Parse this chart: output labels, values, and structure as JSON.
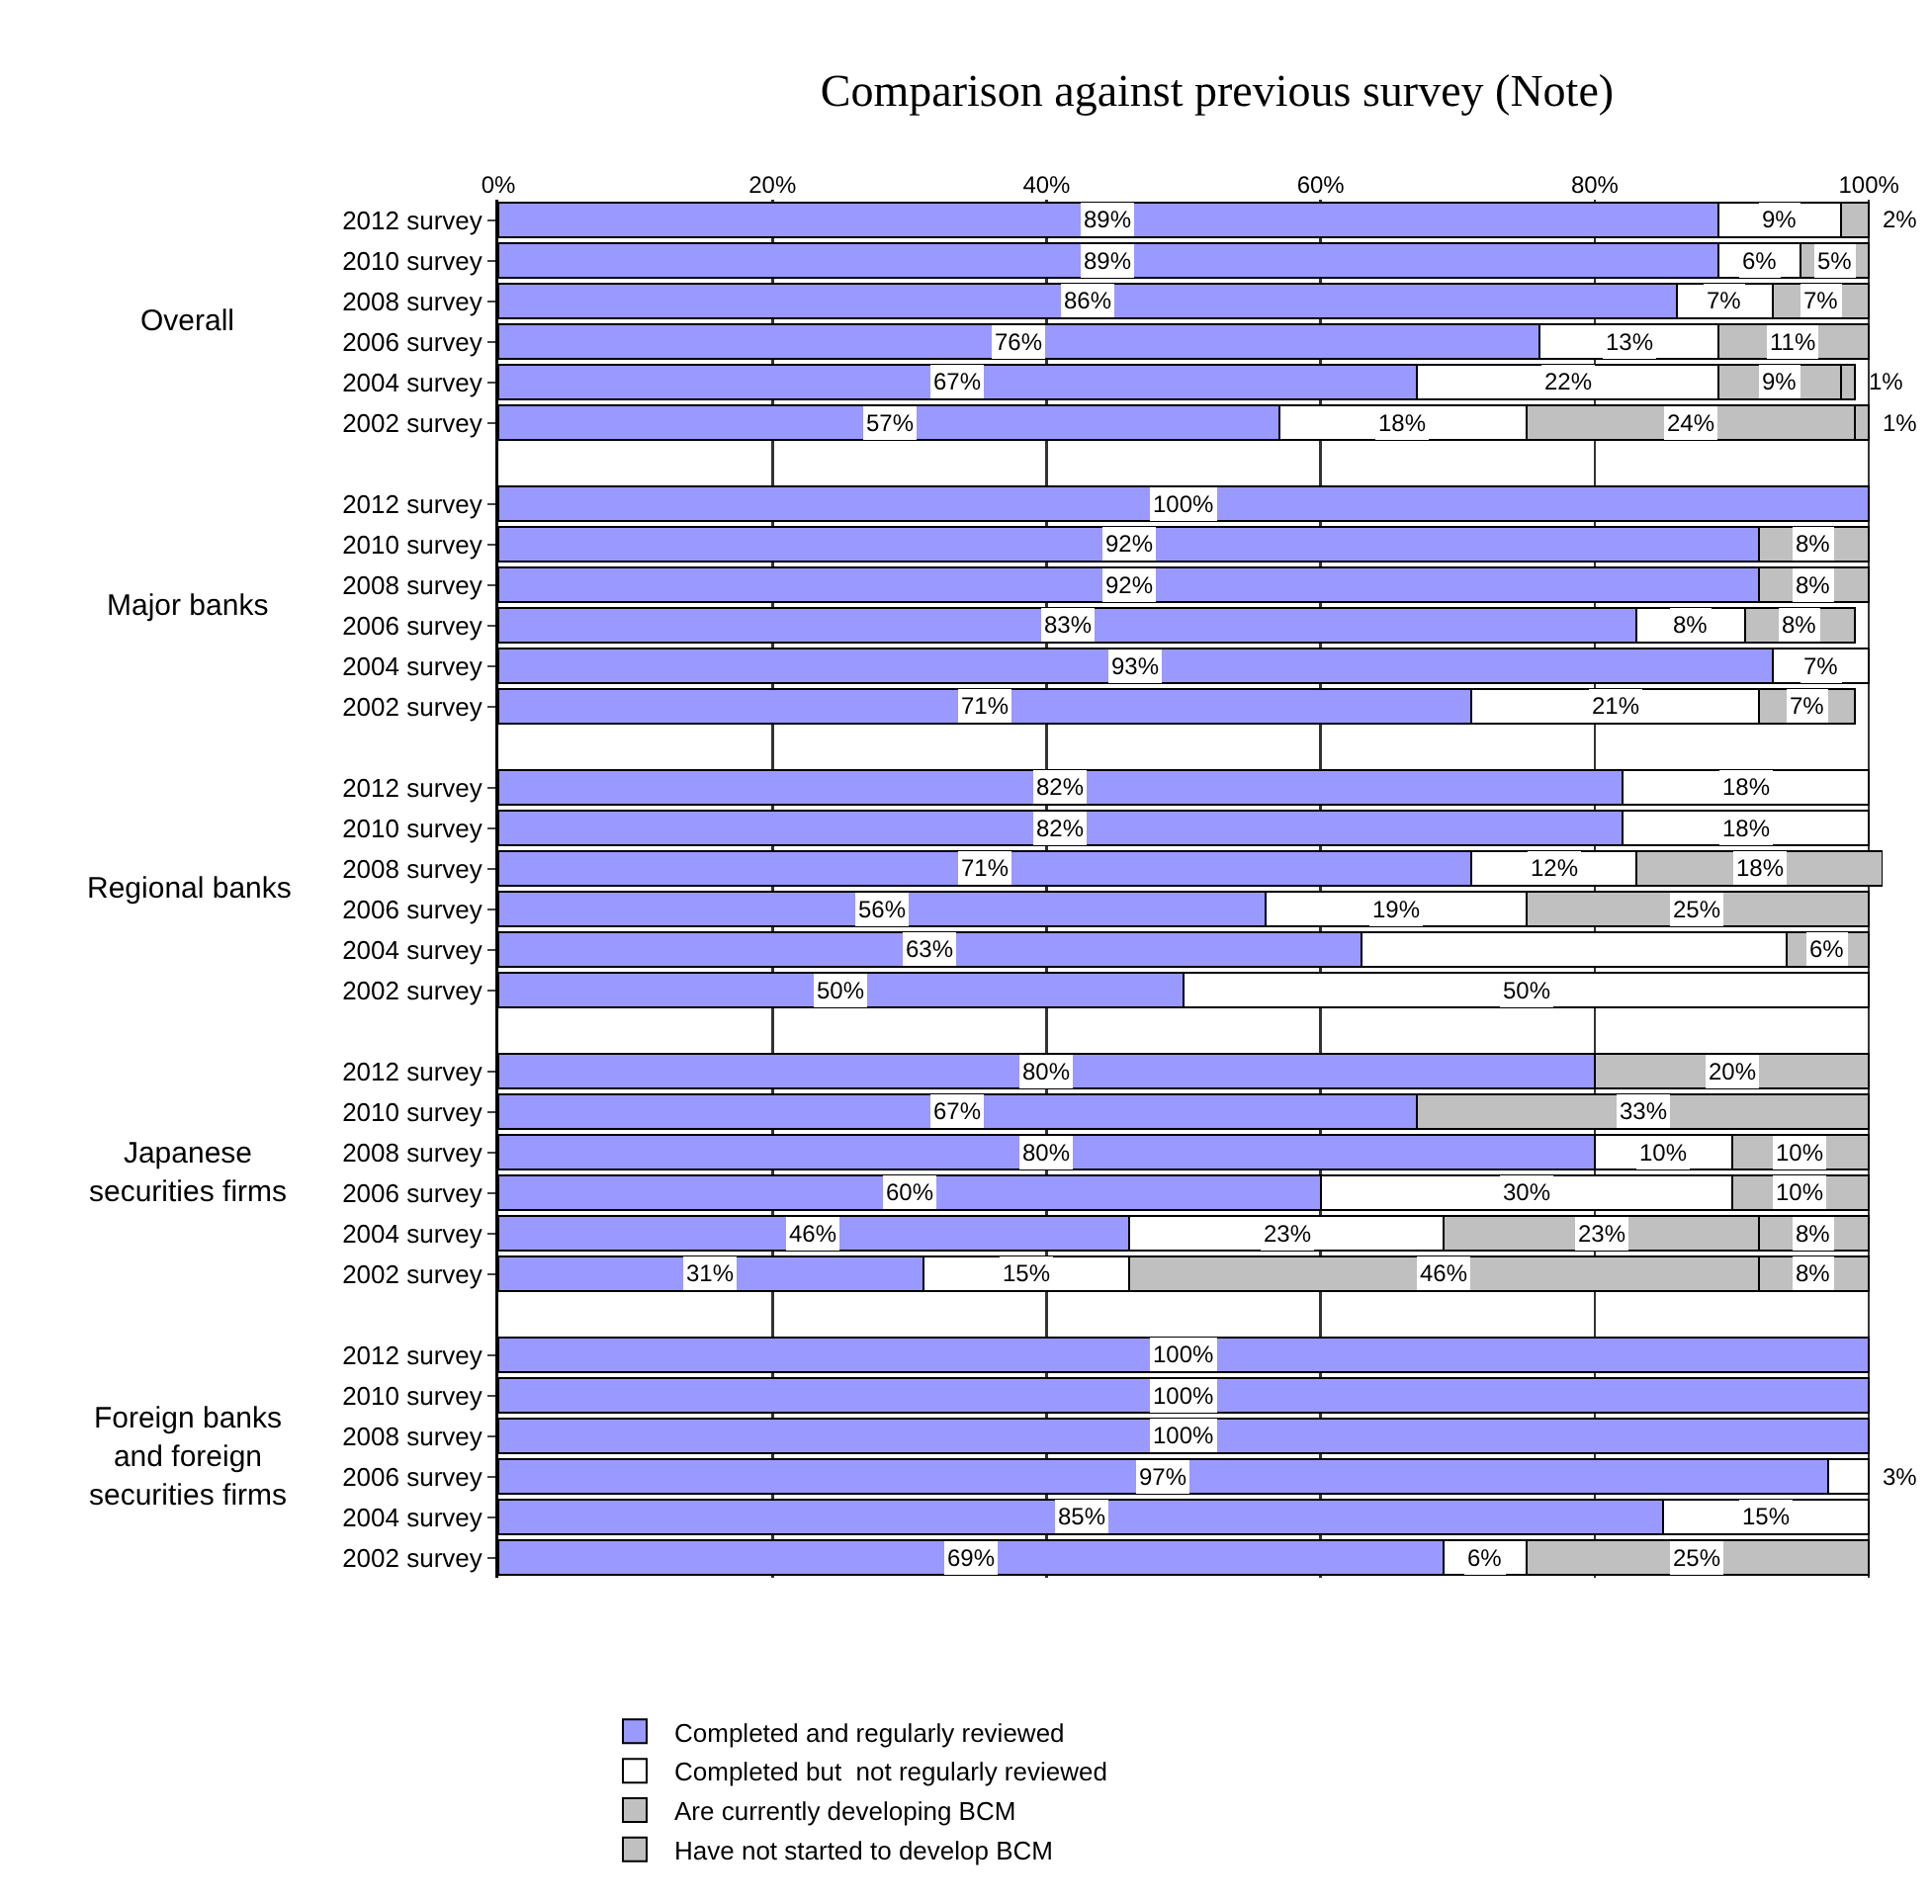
{
  "chart_data": {
    "type": "bar",
    "orientation": "horizontal",
    "stacked": true,
    "title": "Comparison against previous survey (Note)",
    "categories": [
      "2012 survey",
      "2010 survey",
      "2008 survey",
      "2006 survey",
      "2004 survey",
      "2002 survey",
      null,
      "2012 survey",
      "2010 survey",
      "2008 survey",
      "2006 survey",
      "2004 survey",
      "2002 survey",
      null,
      "2012 survey",
      "2010 survey",
      "2008 survey",
      "2006 survey",
      "2004 survey",
      "2002 survey",
      null,
      "2012 survey",
      "2010 survey",
      "2008 survey",
      "2006 survey",
      "2004 survey",
      "2002 survey",
      null,
      "2012 survey",
      "2010 survey",
      "2008 survey",
      "2006 survey",
      "2004 survey",
      "2002 survey"
    ],
    "series": [
      {
        "name": "Completed and regularly reviewed",
        "color": "#9999ff",
        "values": [
          89,
          89,
          86,
          76,
          67,
          57,
          null,
          100,
          92,
          92,
          83,
          93,
          71,
          null,
          82,
          82,
          71,
          56,
          63,
          50,
          null,
          80,
          67,
          80,
          60,
          46,
          31,
          null,
          100,
          100,
          100,
          97,
          85,
          69
        ],
        "value_labels": [
          "89%",
          "89%",
          "86%",
          "76%",
          "67%",
          "57%",
          null,
          "100%",
          "92%",
          "92%",
          "83%",
          "93%",
          "71%",
          null,
          "82%",
          "82%",
          "71%",
          "56%",
          "63%",
          "50%",
          null,
          "80%",
          "67%",
          "80%",
          "60%",
          "46%",
          "31%",
          null,
          "100%",
          "100%",
          "100%",
          "97%",
          "85%",
          "69%"
        ]
      },
      {
        "name": "Completed but  not regularly reviewed",
        "color": "#ffffff",
        "values": [
          9,
          6,
          7,
          13,
          22,
          18,
          null,
          null,
          null,
          null,
          8,
          7,
          21,
          null,
          18,
          18,
          12,
          19,
          31,
          50,
          null,
          null,
          null,
          10,
          30,
          23,
          15,
          null,
          null,
          null,
          null,
          3,
          15,
          6
        ],
        "value_labels": [
          "9%",
          "6%",
          "7%",
          "13%",
          "22%",
          "18%",
          null,
          null,
          null,
          null,
          "8%",
          "7%",
          "21%",
          null,
          "18%",
          "18%",
          "12%",
          "19%",
          null,
          "50%",
          null,
          null,
          null,
          "10%",
          "30%",
          "23%",
          "15%",
          null,
          null,
          null,
          null,
          "3%",
          "15%",
          "6%"
        ]
      },
      {
        "name": "Are currently developing BCM",
        "color": "#c0c0c0",
        "values": [
          2,
          5,
          7,
          11,
          9,
          24,
          null,
          null,
          8,
          8,
          8,
          null,
          7,
          null,
          null,
          null,
          18,
          25,
          6,
          null,
          null,
          20,
          33,
          10,
          10,
          23,
          46,
          null,
          null,
          null,
          null,
          null,
          null,
          25
        ],
        "value_labels": [
          "2%",
          "5%",
          "7%",
          "11%",
          "9%",
          "24%",
          null,
          null,
          "8%",
          "8%",
          "8%",
          null,
          "7%",
          null,
          null,
          null,
          "18%",
          "25%",
          "6%",
          null,
          null,
          "20%",
          "33%",
          "10%",
          "10%",
          "23%",
          "46%",
          null,
          null,
          null,
          null,
          null,
          null,
          "25%"
        ]
      },
      {
        "name": "Have not started to develop BCM",
        "color": "#c0c0c0",
        "values": [
          null,
          null,
          null,
          null,
          1,
          1,
          null,
          null,
          null,
          null,
          null,
          null,
          null,
          null,
          null,
          null,
          null,
          null,
          null,
          null,
          null,
          null,
          null,
          null,
          null,
          8,
          8,
          null,
          null,
          null,
          null,
          null,
          null,
          null
        ],
        "value_labels": [
          null,
          null,
          null,
          null,
          "1%",
          "1%",
          null,
          null,
          null,
          null,
          null,
          null,
          null,
          null,
          null,
          null,
          null,
          null,
          null,
          null,
          null,
          null,
          null,
          null,
          null,
          "8%",
          "8%",
          null,
          null,
          null,
          null,
          null,
          null,
          null
        ]
      }
    ],
    "annotations": [
      "Overall",
      "Major banks",
      "Regional banks",
      "Japanese securities firms",
      "Foreign banks and foreign securities firms"
    ],
    "xlim": [
      0,
      101
    ],
    "xticks": [
      {
        "value": 0,
        "label": "0%"
      },
      {
        "value": 20,
        "label": "20%"
      },
      {
        "value": 40,
        "label": "40%"
      },
      {
        "value": 60,
        "label": "60%"
      },
      {
        "value": 80,
        "label": "80%"
      },
      {
        "value": 100,
        "label": "100%"
      }
    ],
    "grid": "x",
    "legend": "bottom"
  }
}
